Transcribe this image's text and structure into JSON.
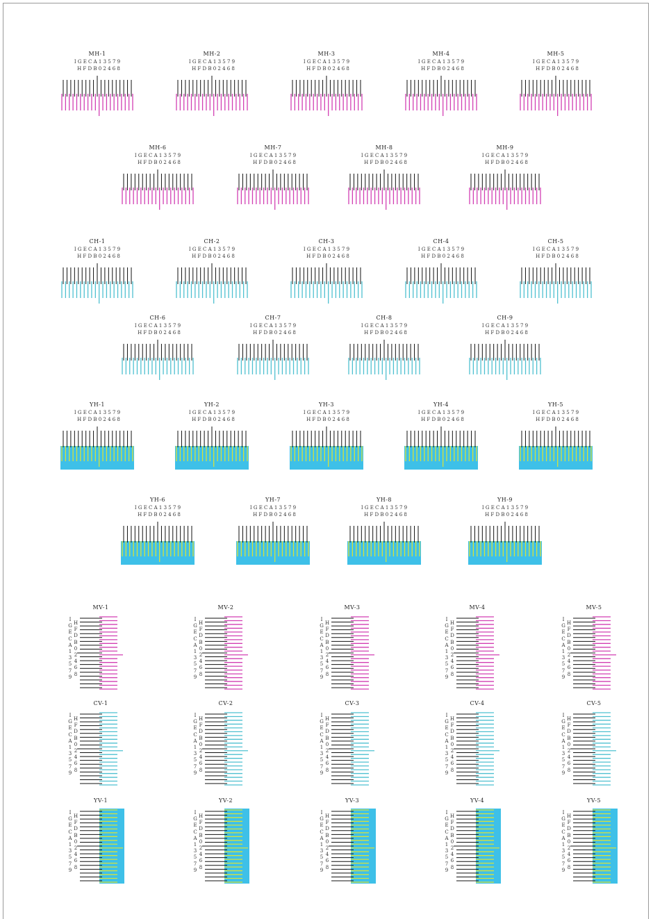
{
  "colors": {
    "magenta": "#d23fb3",
    "cyan": "#4ec0d0",
    "cyan_fill": "#3ec0e8",
    "yellow": "#d8e23a",
    "black": "#111111"
  },
  "scale": {
    "odd_labels": "I G E C A 1 3 5 7 9",
    "even_labels": "H F D B 0 2 4 6 8",
    "v_left": [
      "I",
      "G",
      "E",
      "C",
      "A",
      "1",
      "3",
      "5",
      "7",
      "9"
    ],
    "v_right": [
      "H",
      "F",
      "D",
      "B",
      "0",
      "2",
      "4",
      "6",
      "8"
    ]
  },
  "h_rows": [
    {
      "color": "magenta",
      "patterns": [
        "MH-1",
        "MH-2",
        "MH-3",
        "MH-4",
        "MH-5"
      ]
    },
    {
      "color": "magenta",
      "patterns": [
        "MH-6",
        "MH-7",
        "MH-8",
        "MH-9"
      ]
    },
    {
      "color": "cyan",
      "patterns": [
        "CH-1",
        "CH-2",
        "CH-3",
        "CH-4",
        "CH-5"
      ]
    },
    {
      "color": "cyan",
      "patterns": [
        "CH-6",
        "CH-7",
        "CH-8",
        "CH-9"
      ]
    },
    {
      "color": "yellow",
      "patterns": [
        "YH-1",
        "YH-2",
        "YH-3",
        "YH-4",
        "YH-5"
      ]
    },
    {
      "color": "yellow",
      "patterns": [
        "YH-6",
        "YH-7",
        "YH-8",
        "YH-9"
      ]
    }
  ],
  "v_rows": [
    {
      "color": "magenta",
      "patterns": [
        "MV-1",
        "MV-2",
        "MV-3",
        "MV-4",
        "MV-5"
      ]
    },
    {
      "color": "cyan",
      "patterns": [
        "CV-1",
        "CV-2",
        "CV-3",
        "CV-4",
        "CV-5"
      ]
    },
    {
      "color": "yellow",
      "patterns": [
        "YV-1",
        "YV-2",
        "YV-3",
        "YV-4",
        "YV-5"
      ]
    }
  ]
}
